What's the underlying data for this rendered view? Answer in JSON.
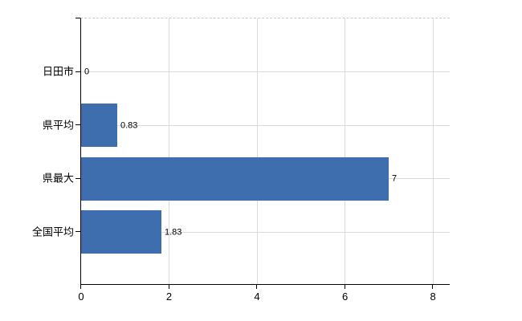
{
  "chart_data": {
    "type": "bar",
    "orientation": "horizontal",
    "categories": [
      "日田市",
      "県平均",
      "県最大",
      "全国平均"
    ],
    "values": [
      0,
      0.83,
      7,
      1.83
    ],
    "data_labels": [
      "0",
      "0.83",
      "7",
      "1.83"
    ],
    "title": "",
    "xlabel": "",
    "ylabel": "",
    "x_ticks": [
      0,
      2,
      4,
      6,
      8
    ],
    "x_tick_labels": [
      "0",
      "2",
      "4",
      "6",
      "8"
    ],
    "xlim": [
      0,
      8.4
    ],
    "grid": true,
    "legend": "none",
    "colors": {
      "bar": "#3e6eae",
      "gridline": "#dbdbdb",
      "plot_top_border": "#c9c9c9",
      "axis": "#000000",
      "text": "#000000",
      "background": "#ffffff"
    }
  }
}
